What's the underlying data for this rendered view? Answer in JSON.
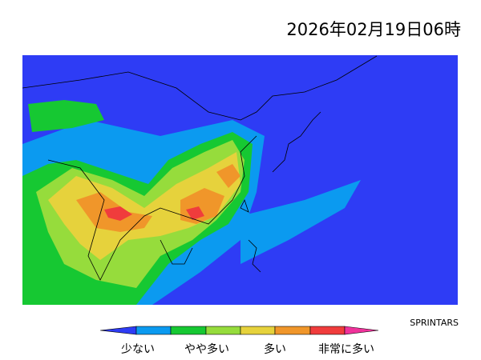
{
  "header": {
    "title": "2026年02月19日06時"
  },
  "credit": "SPRINTARS",
  "legend": {
    "labels": [
      "少ない",
      "やや多い",
      "多い",
      "非常に多い"
    ]
  }
}
